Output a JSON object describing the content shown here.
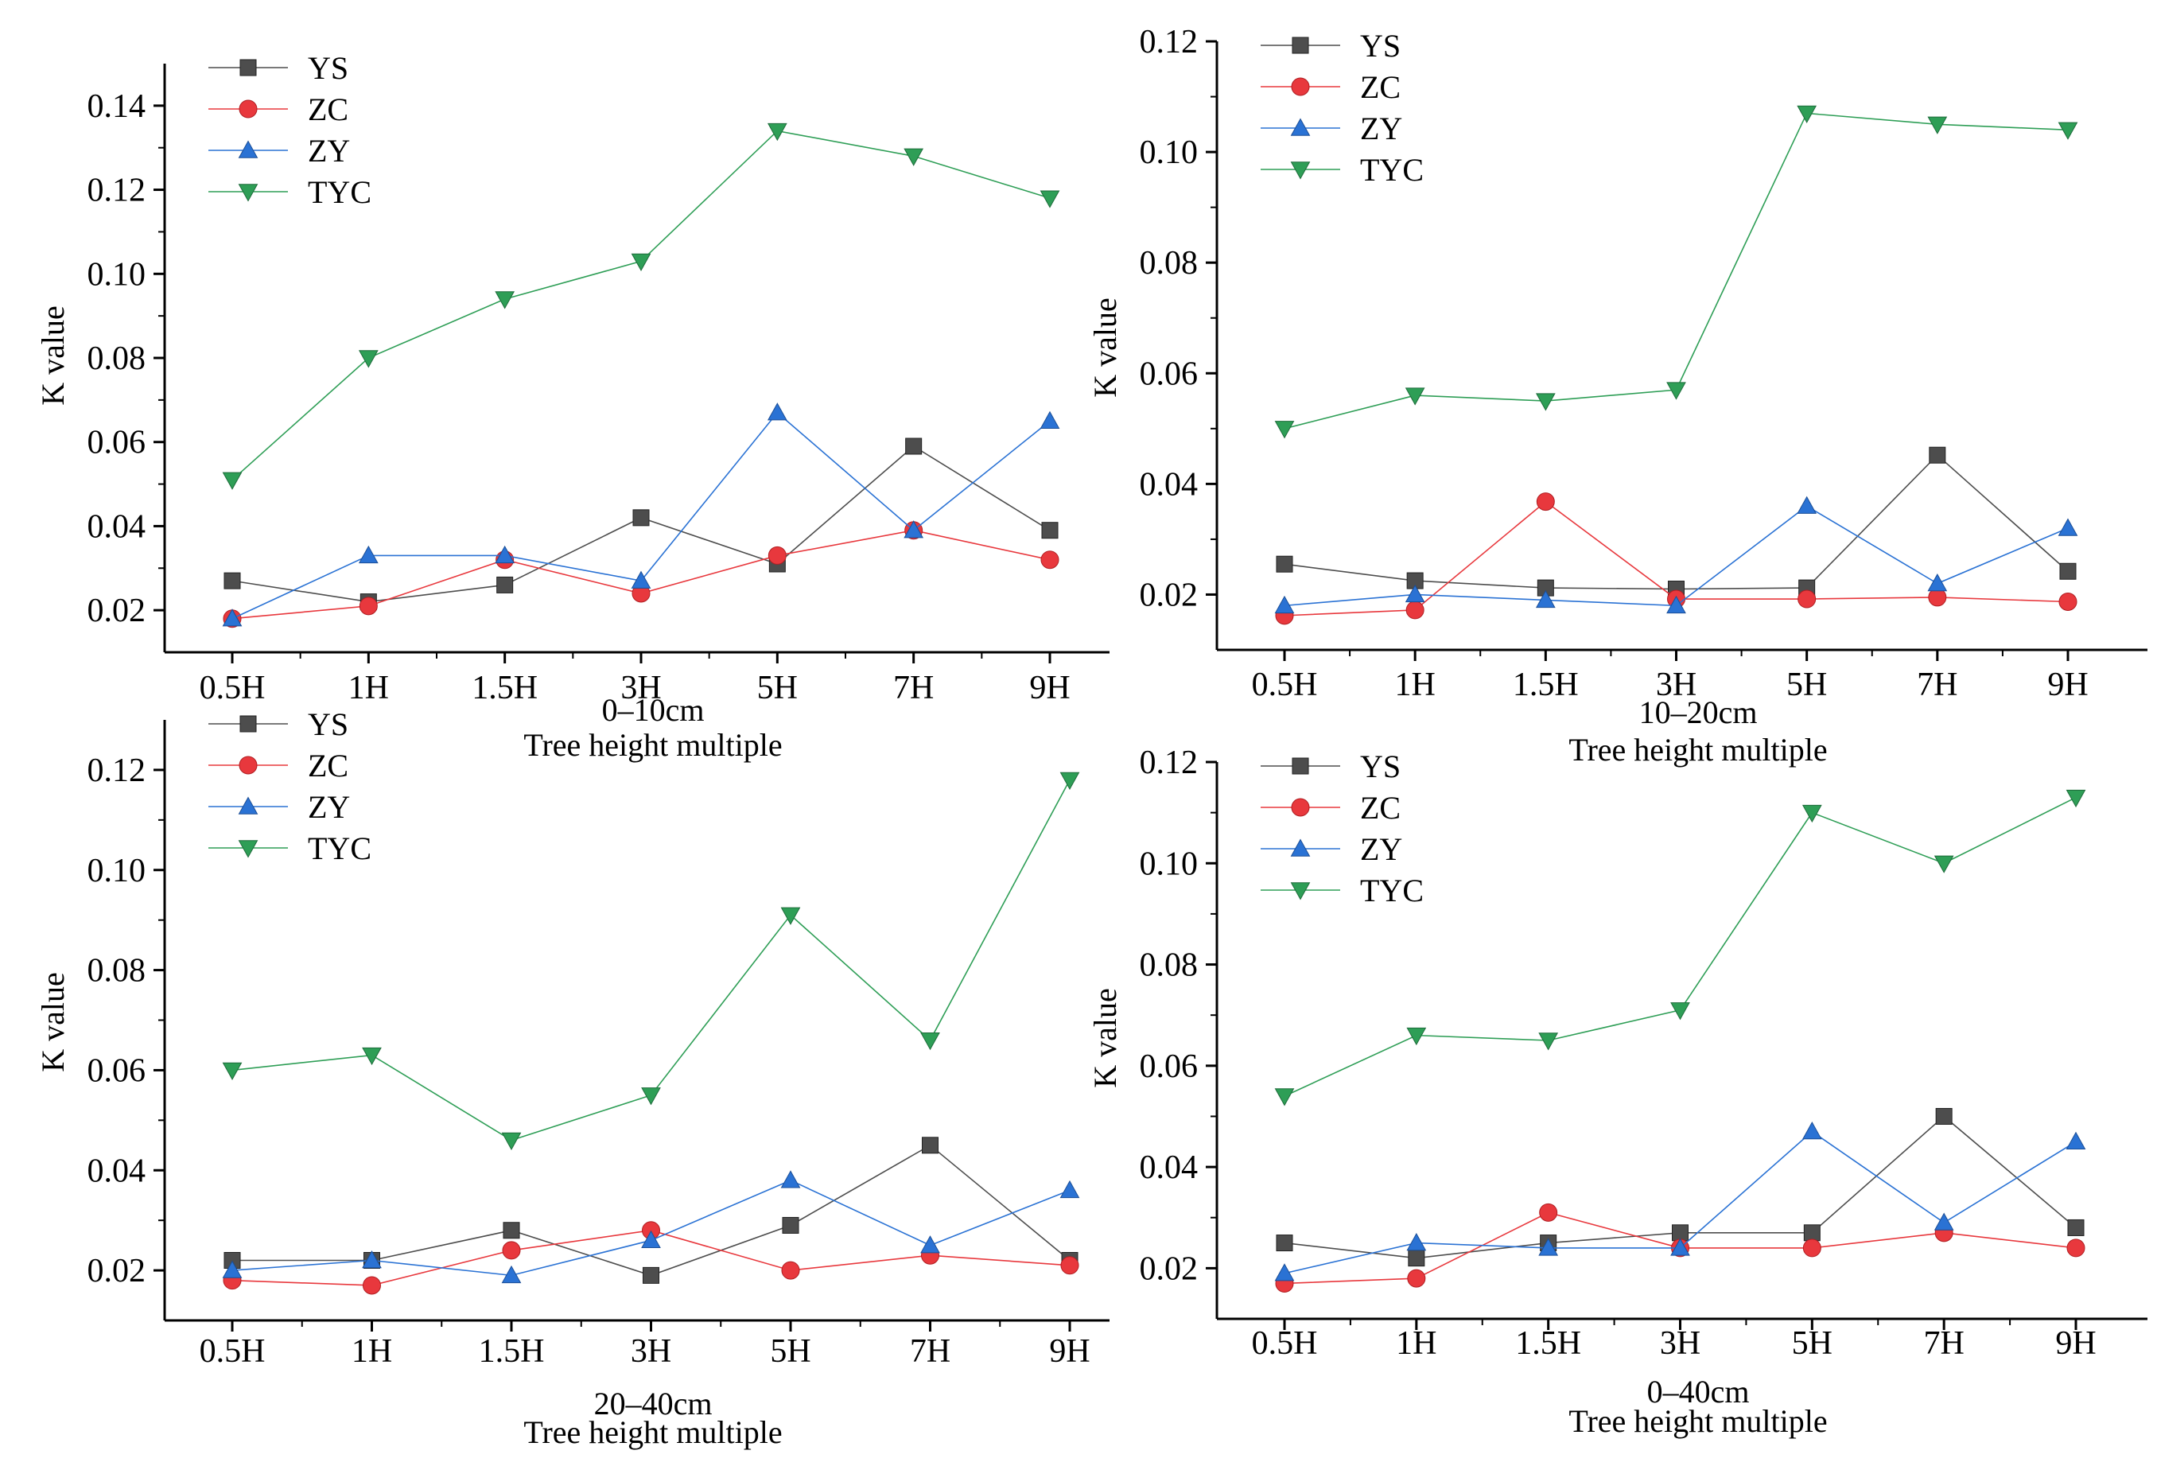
{
  "charts": [
    {
      "subtitle": "0–10cm",
      "chart_data": {
        "type": "line",
        "categories": [
          "0.5H",
          "1H",
          "1.5H",
          "3H",
          "5H",
          "7H",
          "9H"
        ],
        "xlabel": "Tree height multiple",
        "ylabel": "K value",
        "ylim": [
          0.01,
          0.15
        ],
        "yticks": [
          "0.02",
          "0.04",
          "0.06",
          "0.08",
          "0.10",
          "0.12",
          "0.14"
        ],
        "grid": false,
        "legend": "top-left",
        "series": [
          {
            "name": "YS",
            "marker": "square",
            "color": "#4d4d4d",
            "values": [
              0.027,
              0.022,
              0.026,
              0.042,
              0.031,
              0.059,
              0.039
            ]
          },
          {
            "name": "ZC",
            "marker": "circle",
            "color": "#e8383d",
            "values": [
              0.018,
              0.021,
              0.032,
              0.024,
              0.033,
              0.039,
              0.032
            ]
          },
          {
            "name": "ZY",
            "marker": "triangle-up",
            "color": "#2a72d4",
            "values": [
              0.018,
              0.033,
              0.033,
              0.027,
              0.067,
              0.039,
              0.065
            ]
          },
          {
            "name": "TYC",
            "marker": "triangle-down",
            "color": "#2e9e56",
            "values": [
              0.051,
              0.08,
              0.094,
              0.103,
              0.134,
              0.128,
              0.118
            ]
          }
        ]
      }
    },
    {
      "subtitle": "10–20cm",
      "chart_data": {
        "type": "line",
        "categories": [
          "0.5H",
          "1H",
          "1.5H",
          "3H",
          "5H",
          "7H",
          "9H"
        ],
        "xlabel": "Tree height multiple",
        "ylabel": "K value",
        "ylim": [
          0.01,
          0.12
        ],
        "yticks": [
          "0.02",
          "0.04",
          "0.06",
          "0.08",
          "0.10",
          "0.12"
        ],
        "grid": false,
        "legend": "top-left",
        "series": [
          {
            "name": "YS",
            "marker": "square",
            "color": "#4d4d4d",
            "values": [
              0.0255,
              0.0225,
              0.0212,
              0.021,
              0.0212,
              0.0452,
              0.0242
            ]
          },
          {
            "name": "ZC",
            "marker": "circle",
            "color": "#e8383d",
            "values": [
              0.0162,
              0.0172,
              0.0368,
              0.0192,
              0.0192,
              0.0195,
              0.0187
            ]
          },
          {
            "name": "ZY",
            "marker": "triangle-up",
            "color": "#2a72d4",
            "values": [
              0.018,
              0.02,
              0.019,
              0.018,
              0.036,
              0.022,
              0.032
            ]
          },
          {
            "name": "TYC",
            "marker": "triangle-down",
            "color": "#2e9e56",
            "values": [
              0.05,
              0.056,
              0.055,
              0.057,
              0.107,
              0.105,
              0.104
            ]
          }
        ]
      }
    },
    {
      "subtitle": "20–40cm",
      "chart_data": {
        "type": "line",
        "categories": [
          "0.5H",
          "1H",
          "1.5H",
          "3H",
          "5H",
          "7H",
          "9H"
        ],
        "xlabel": "Tree height multiple",
        "ylabel": "K value",
        "ylim": [
          0.01,
          0.13
        ],
        "yticks": [
          "0.02",
          "0.04",
          "0.06",
          "0.08",
          "0.10",
          "0.12"
        ],
        "grid": false,
        "legend": "top-left",
        "series": [
          {
            "name": "YS",
            "marker": "square",
            "color": "#4d4d4d",
            "values": [
              0.022,
              0.022,
              0.028,
              0.019,
              0.029,
              0.045,
              0.022
            ]
          },
          {
            "name": "ZC",
            "marker": "circle",
            "color": "#e8383d",
            "values": [
              0.018,
              0.017,
              0.024,
              0.028,
              0.02,
              0.023,
              0.021
            ]
          },
          {
            "name": "ZY",
            "marker": "triangle-up",
            "color": "#2a72d4",
            "values": [
              0.02,
              0.022,
              0.019,
              0.026,
              0.038,
              0.025,
              0.036
            ]
          },
          {
            "name": "TYC",
            "marker": "triangle-down",
            "color": "#2e9e56",
            "values": [
              0.06,
              0.063,
              0.046,
              0.055,
              0.091,
              0.066,
              0.118
            ]
          }
        ]
      }
    },
    {
      "subtitle": "0–40cm",
      "chart_data": {
        "type": "line",
        "categories": [
          "0.5H",
          "1H",
          "1.5H",
          "3H",
          "5H",
          "7H",
          "9H"
        ],
        "xlabel": "Tree height multiple",
        "ylabel": "K value",
        "ylim": [
          0.01,
          0.12
        ],
        "yticks": [
          "0.02",
          "0.04",
          "0.06",
          "0.08",
          "0.10",
          "0.12"
        ],
        "grid": false,
        "legend": "top-left",
        "series": [
          {
            "name": "YS",
            "marker": "square",
            "color": "#4d4d4d",
            "values": [
              0.025,
              0.022,
              0.025,
              0.027,
              0.027,
              0.05,
              0.028
            ]
          },
          {
            "name": "ZC",
            "marker": "circle",
            "color": "#e8383d",
            "values": [
              0.017,
              0.018,
              0.031,
              0.024,
              0.024,
              0.027,
              0.024
            ]
          },
          {
            "name": "ZY",
            "marker": "triangle-up",
            "color": "#2a72d4",
            "values": [
              0.019,
              0.025,
              0.024,
              0.024,
              0.047,
              0.029,
              0.045
            ]
          },
          {
            "name": "TYC",
            "marker": "triangle-down",
            "color": "#2e9e56",
            "values": [
              0.054,
              0.066,
              0.065,
              0.071,
              0.11,
              0.1,
              0.113
            ]
          }
        ]
      }
    }
  ]
}
